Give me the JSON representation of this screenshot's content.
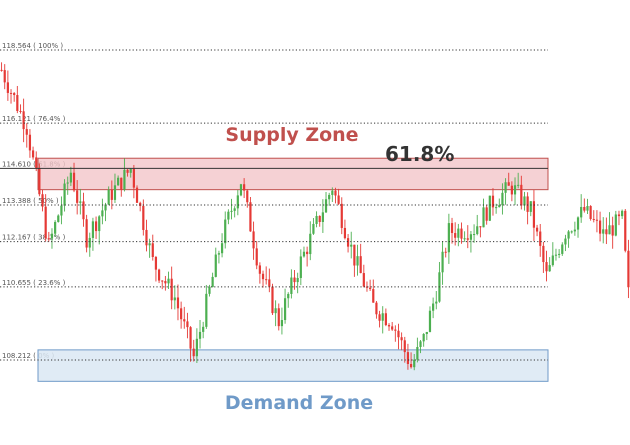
{
  "chart_data": {
    "type": "candlestick",
    "colors": {
      "up": "#4caf50",
      "down": "#e53935",
      "supply_fill": "#f3c6c9",
      "supply_stroke": "#c0504d",
      "demand_fill": "#dbe7f3",
      "demand_stroke": "#6f9ac8",
      "supply_text": "#c0504d",
      "demand_text": "#6f9ac8",
      "fib_line": "#333333"
    },
    "fib_levels": [
      {
        "price": 118.564,
        "label": "118.564 ( 100% )"
      },
      {
        "price": 116.121,
        "label": "116.121 ( 76.4% )"
      },
      {
        "price": 114.61,
        "label": "114.610 ( 61.8% )"
      },
      {
        "price": 113.388,
        "label": "113.388 ( 50% )"
      },
      {
        "price": 112.167,
        "label": "112.167 ( 38.2% )"
      },
      {
        "price": 110.655,
        "label": "110.655 ( 23.6% )"
      },
      {
        "price": 108.212,
        "label": "108.212 ( 0% )"
      }
    ],
    "zones": {
      "supply": {
        "label": "Supply Zone",
        "low": 113.9,
        "high": 114.95
      },
      "demand": {
        "label": "Demand Zone",
        "low": 107.5,
        "high": 108.55
      }
    },
    "annotation": "61.8%",
    "ylim": [
      107.1,
      119.1
    ],
    "path": [
      {
        "i": 0,
        "p": 117.9
      },
      {
        "i": 8,
        "p": 116.0
      },
      {
        "i": 15,
        "p": 112.0
      },
      {
        "i": 22,
        "p": 114.5
      },
      {
        "i": 27,
        "p": 112.3
      },
      {
        "i": 35,
        "p": 113.8
      },
      {
        "i": 41,
        "p": 114.6
      },
      {
        "i": 48,
        "p": 111.5
      },
      {
        "i": 55,
        "p": 110.3
      },
      {
        "i": 61,
        "p": 108.3
      },
      {
        "i": 70,
        "p": 112.3
      },
      {
        "i": 76,
        "p": 114.2
      },
      {
        "i": 82,
        "p": 111.2
      },
      {
        "i": 88,
        "p": 109.5
      },
      {
        "i": 95,
        "p": 111.5
      },
      {
        "i": 105,
        "p": 114.0
      },
      {
        "i": 112,
        "p": 111.6
      },
      {
        "i": 118,
        "p": 110.0
      },
      {
        "i": 124,
        "p": 109.5
      },
      {
        "i": 130,
        "p": 108.0
      },
      {
        "i": 134,
        "p": 108.9
      },
      {
        "i": 138,
        "p": 110.5
      },
      {
        "i": 142,
        "p": 112.5
      },
      {
        "i": 150,
        "p": 112.6
      },
      {
        "i": 156,
        "p": 113.5
      },
      {
        "i": 162,
        "p": 114.0
      },
      {
        "i": 168,
        "p": 113.2
      },
      {
        "i": 173,
        "p": 111.0
      },
      {
        "i": 179,
        "p": 112.5
      },
      {
        "i": 185,
        "p": 113.2
      },
      {
        "i": 191,
        "p": 112.4
      },
      {
        "i": 197,
        "p": 112.9
      },
      {
        "i": 199,
        "p": 110.4
      }
    ],
    "candle_count": 200
  }
}
